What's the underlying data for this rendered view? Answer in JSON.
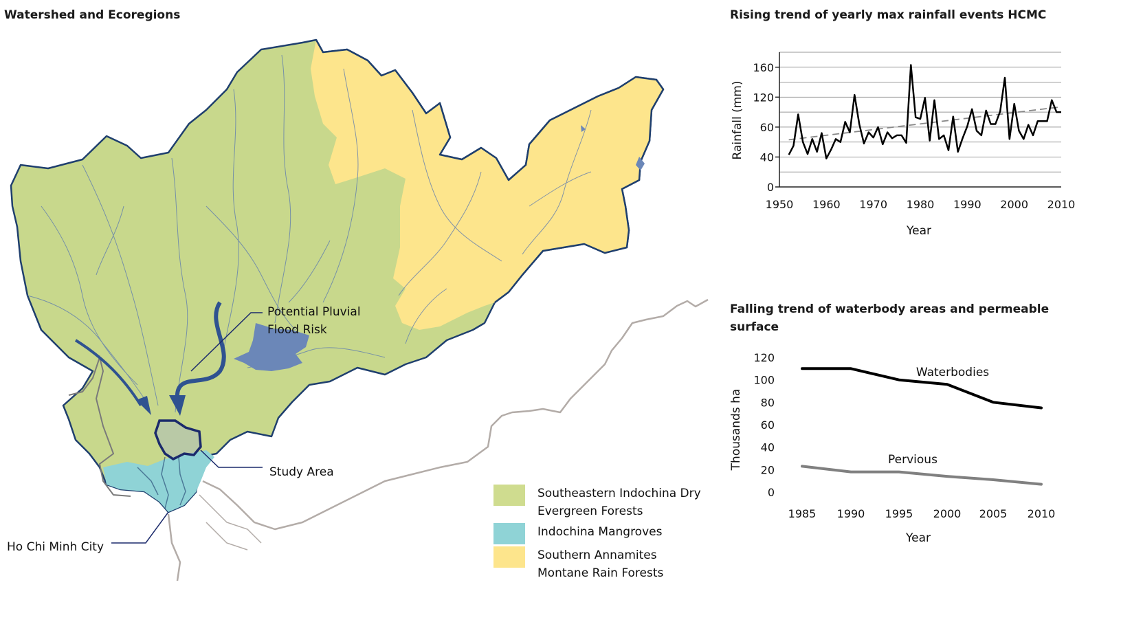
{
  "map": {
    "title": "Watershed and Ecoregions",
    "labels": {
      "flood_risk_line1": "Potential Pluvial",
      "flood_risk_line2": "Flood Risk",
      "study_area": "Study Area",
      "city": "Ho Chi Minh City"
    },
    "legend": [
      {
        "label_line1": "Southeastern Indochina Dry",
        "label_line2": "Evergreen Forests",
        "color": "#cfdc8f"
      },
      {
        "label_line1": "Indochina Mangroves",
        "label_line2": "",
        "color": "#8fd3d6"
      },
      {
        "label_line1": "Southern Annamites",
        "label_line2": "Montane Rain Forests",
        "color": "#fde58c"
      }
    ],
    "colors": {
      "dry_forest": "#c8d88c",
      "montane": "#fde58c",
      "mangrove": "#8fd3d6",
      "boundary": "#1f3f6e",
      "rivers": "#5a78b0",
      "reservoir": "#6b87b8",
      "coast": "#b3aca8",
      "border": "#7a7a7a"
    }
  },
  "chart_rain": {
    "title": "Rising trend of yearly max rainfall events HCMC",
    "chart_data": {
      "type": "line",
      "title": "Rising trend of yearly max rainfall events HCMC",
      "xlabel": "Year",
      "ylabel": "Rainfall (mm)",
      "ytick_labels": [
        "0",
        "40",
        "60",
        "120",
        "160"
      ],
      "xtick_labels": [
        "1950",
        "1960",
        "1970",
        "1980",
        "1990",
        "2000",
        "2010"
      ],
      "xlim": [
        1950,
        2010
      ],
      "ylim": [
        0,
        180
      ],
      "grid": true,
      "x": [
        1952,
        1953,
        1954,
        1955,
        1956,
        1957,
        1958,
        1959,
        1960,
        1961,
        1962,
        1963,
        1964,
        1965,
        1966,
        1967,
        1968,
        1969,
        1970,
        1971,
        1972,
        1973,
        1974,
        1975,
        1976,
        1977,
        1978,
        1979,
        1980,
        1981,
        1982,
        1983,
        1984,
        1985,
        1986,
        1987,
        1988,
        1989,
        1990,
        1991,
        1992,
        1993,
        1994,
        1995,
        1996,
        1997,
        1998,
        1999,
        2000,
        2001,
        2002,
        2003,
        2004,
        2005,
        2006,
        2007,
        2008,
        2009,
        2010
      ],
      "values": [
        43,
        55,
        97,
        60,
        44,
        64,
        47,
        72,
        38,
        50,
        64,
        60,
        87,
        73,
        123,
        84,
        58,
        73,
        66,
        80,
        57,
        73,
        65,
        69,
        69,
        59,
        163,
        93,
        91,
        119,
        62,
        116,
        64,
        69,
        49,
        94,
        47,
        65,
        81,
        104,
        75,
        69,
        102,
        84,
        84,
        101,
        146,
        64,
        111,
        75,
        64,
        83,
        69,
        88,
        88,
        88,
        116,
        100,
        100
      ],
      "series": [
        {
          "name": "",
          "style": "solid",
          "color": "#000000"
        },
        {
          "name": "",
          "style": "dashed",
          "color": "#888888",
          "trend_start": [
            1952,
            63
          ],
          "trend_end": [
            2010,
            107
          ]
        }
      ]
    }
  },
  "chart_water": {
    "title": "Falling trend of waterbody areas and permeable surface",
    "chart_data": {
      "type": "line",
      "title": "Falling trend of waterbody areas and permeable surface",
      "xlabel": "Year",
      "ylabel": "Thousands ha",
      "categories": [
        "1985",
        "1990",
        "1995",
        "2000",
        "2005",
        "2010"
      ],
      "ylim": [
        0,
        120
      ],
      "ytick_labels": [
        "0",
        "20",
        "40",
        "60",
        "80",
        "100",
        "120"
      ],
      "series": [
        {
          "name": "Waterbodies",
          "values": [
            110,
            110,
            100,
            96,
            80,
            75
          ],
          "color": "#000000"
        },
        {
          "name": "Pervious",
          "values": [
            23,
            18,
            18,
            14,
            11,
            7
          ],
          "color": "#808080"
        }
      ]
    }
  }
}
